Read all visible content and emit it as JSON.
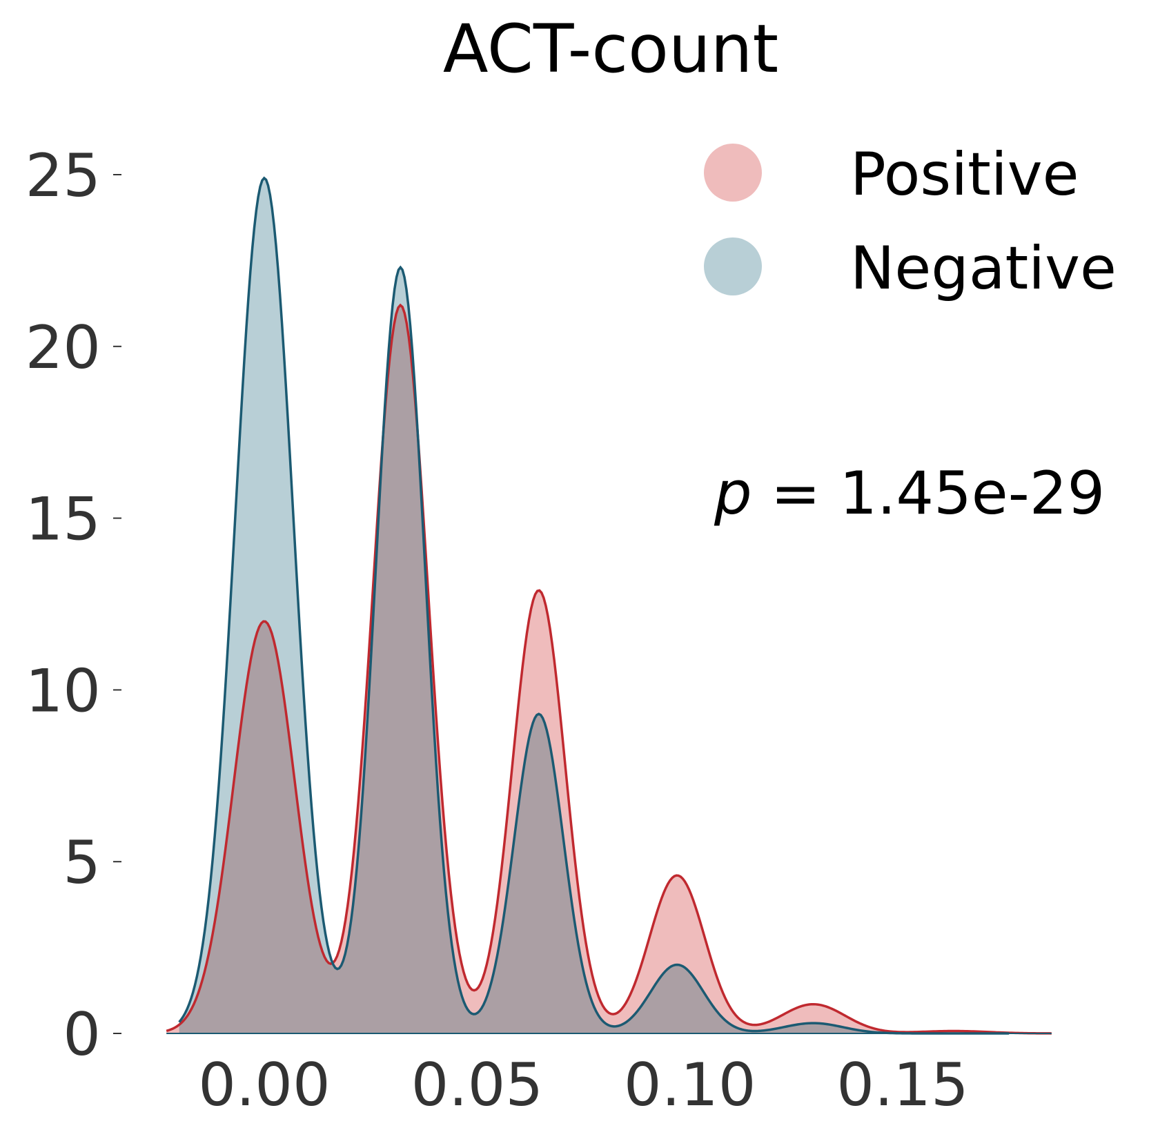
{
  "chart_data": {
    "type": "area",
    "title": "ACT-count",
    "xlabel": "",
    "ylabel": "",
    "xlim": [
      -0.023,
      0.185
    ],
    "ylim": [
      0,
      27
    ],
    "x_ticks": [
      0.0,
      0.05,
      0.1,
      0.15
    ],
    "x_tick_labels": [
      "0.00",
      "0.05",
      "0.10",
      "0.15"
    ],
    "y_ticks": [
      0,
      5,
      10,
      15,
      20,
      25
    ],
    "y_tick_labels": [
      "0",
      "5",
      "10",
      "15",
      "20",
      "25"
    ],
    "grid": false,
    "legend_position": "top-right",
    "series": [
      {
        "name": "Positive",
        "fill_color": "#efbcbc",
        "line_color": "#c0292f",
        "x_start": -0.023,
        "x_end": 0.185,
        "peaks": [
          {
            "x": 0.0,
            "height": 12.0,
            "sd": 0.0072
          },
          {
            "x": 0.032,
            "height": 21.2,
            "sd": 0.0065
          },
          {
            "x": 0.0645,
            "height": 12.9,
            "sd": 0.0062
          },
          {
            "x": 0.097,
            "height": 4.6,
            "sd": 0.0065
          },
          {
            "x": 0.129,
            "height": 0.85,
            "sd": 0.0075
          },
          {
            "x": 0.162,
            "height": 0.07,
            "sd": 0.008
          }
        ]
      },
      {
        "name": "Negative",
        "fill_color": "#b8cfd6",
        "line_color": "#1b5a72",
        "x_start": -0.02,
        "x_end": 0.175,
        "peaks": [
          {
            "x": 0.0,
            "height": 24.9,
            "sd": 0.0068
          },
          {
            "x": 0.032,
            "height": 22.3,
            "sd": 0.0058
          },
          {
            "x": 0.0645,
            "height": 9.3,
            "sd": 0.0058
          },
          {
            "x": 0.097,
            "height": 2.0,
            "sd": 0.0062
          },
          {
            "x": 0.129,
            "height": 0.3,
            "sd": 0.007
          }
        ]
      }
    ],
    "overlap_color": "#ab9fa4",
    "annotation": {
      "symbol": "p",
      "text": " = 1.45e-29"
    }
  }
}
